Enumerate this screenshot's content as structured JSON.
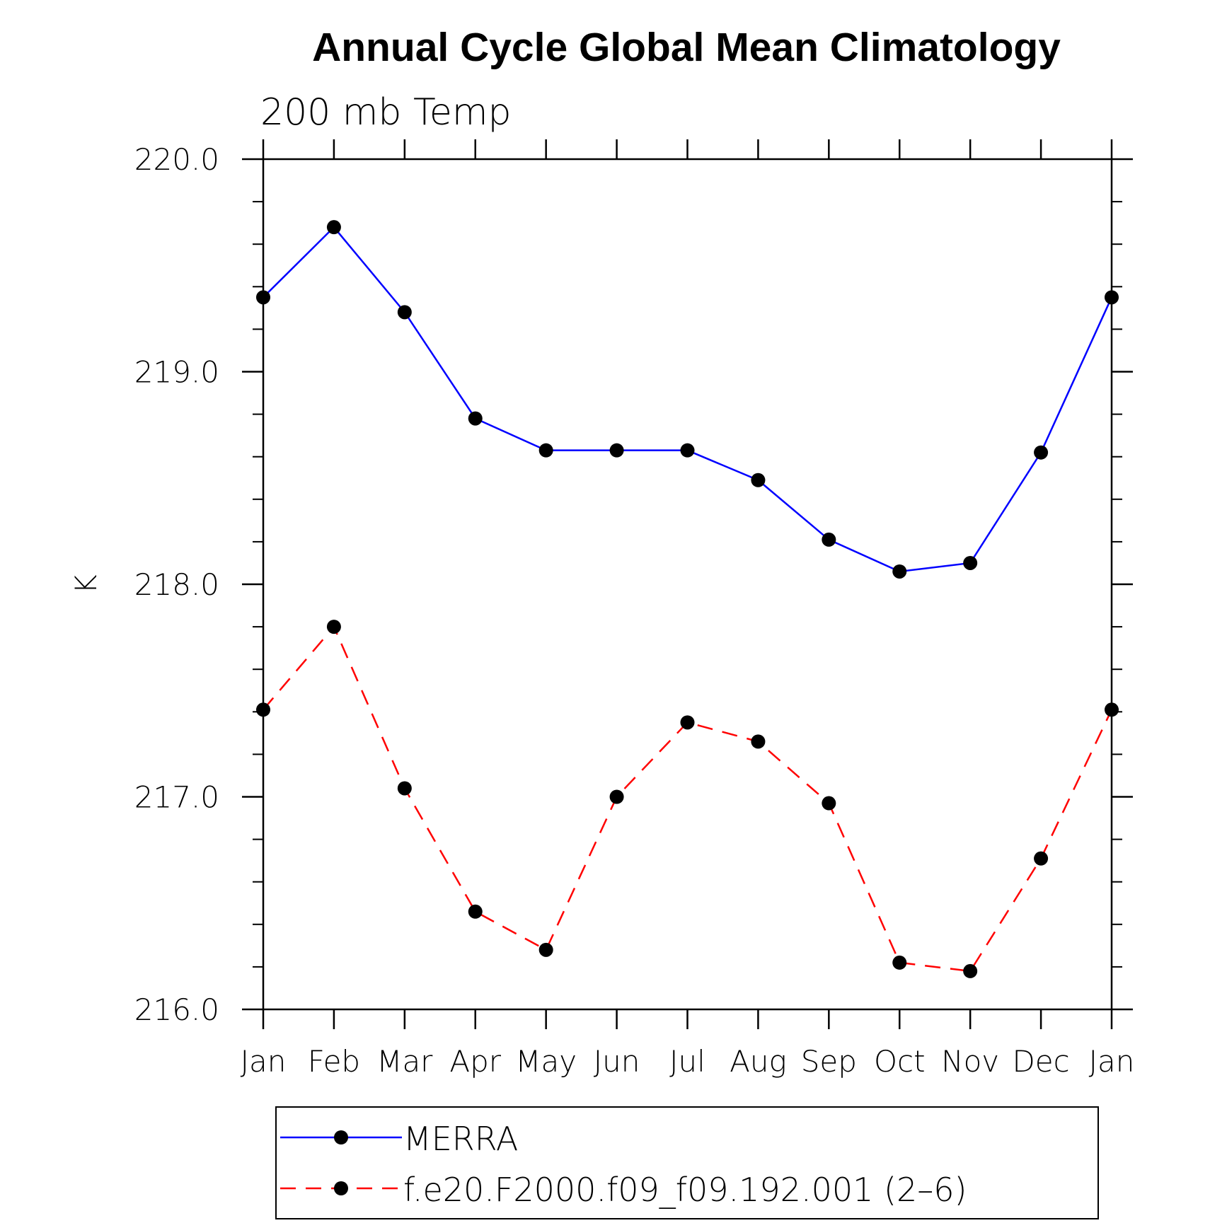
{
  "chart_data": {
    "type": "line",
    "title": "Annual Cycle Global Mean Climatology",
    "subtitle": "200 mb Temp",
    "xlabel": "",
    "ylabel": "K",
    "categories": [
      "Jan",
      "Feb",
      "Mar",
      "Apr",
      "May",
      "Jun",
      "Jul",
      "Aug",
      "Sep",
      "Oct",
      "Nov",
      "Dec",
      "Jan"
    ],
    "ylim": [
      216.0,
      220.0
    ],
    "yticks": [
      "216.0",
      "217.0",
      "218.0",
      "219.0",
      "220.0"
    ],
    "grid": false,
    "legend_position": "bottom",
    "series": [
      {
        "name": "MERRA",
        "color": "#0000ff",
        "line_style": "solid",
        "values": [
          219.35,
          219.68,
          219.28,
          218.78,
          218.63,
          218.63,
          218.63,
          218.49,
          218.21,
          218.06,
          218.1,
          218.62,
          219.35
        ]
      },
      {
        "name": "f.e20.F2000.f09_f09.192.001 (2–6)",
        "color": "#ff0000",
        "line_style": "dashed",
        "values": [
          217.41,
          217.8,
          217.04,
          216.46,
          216.28,
          217.0,
          217.35,
          217.26,
          216.97,
          216.22,
          216.18,
          216.71,
          217.41
        ]
      }
    ]
  }
}
